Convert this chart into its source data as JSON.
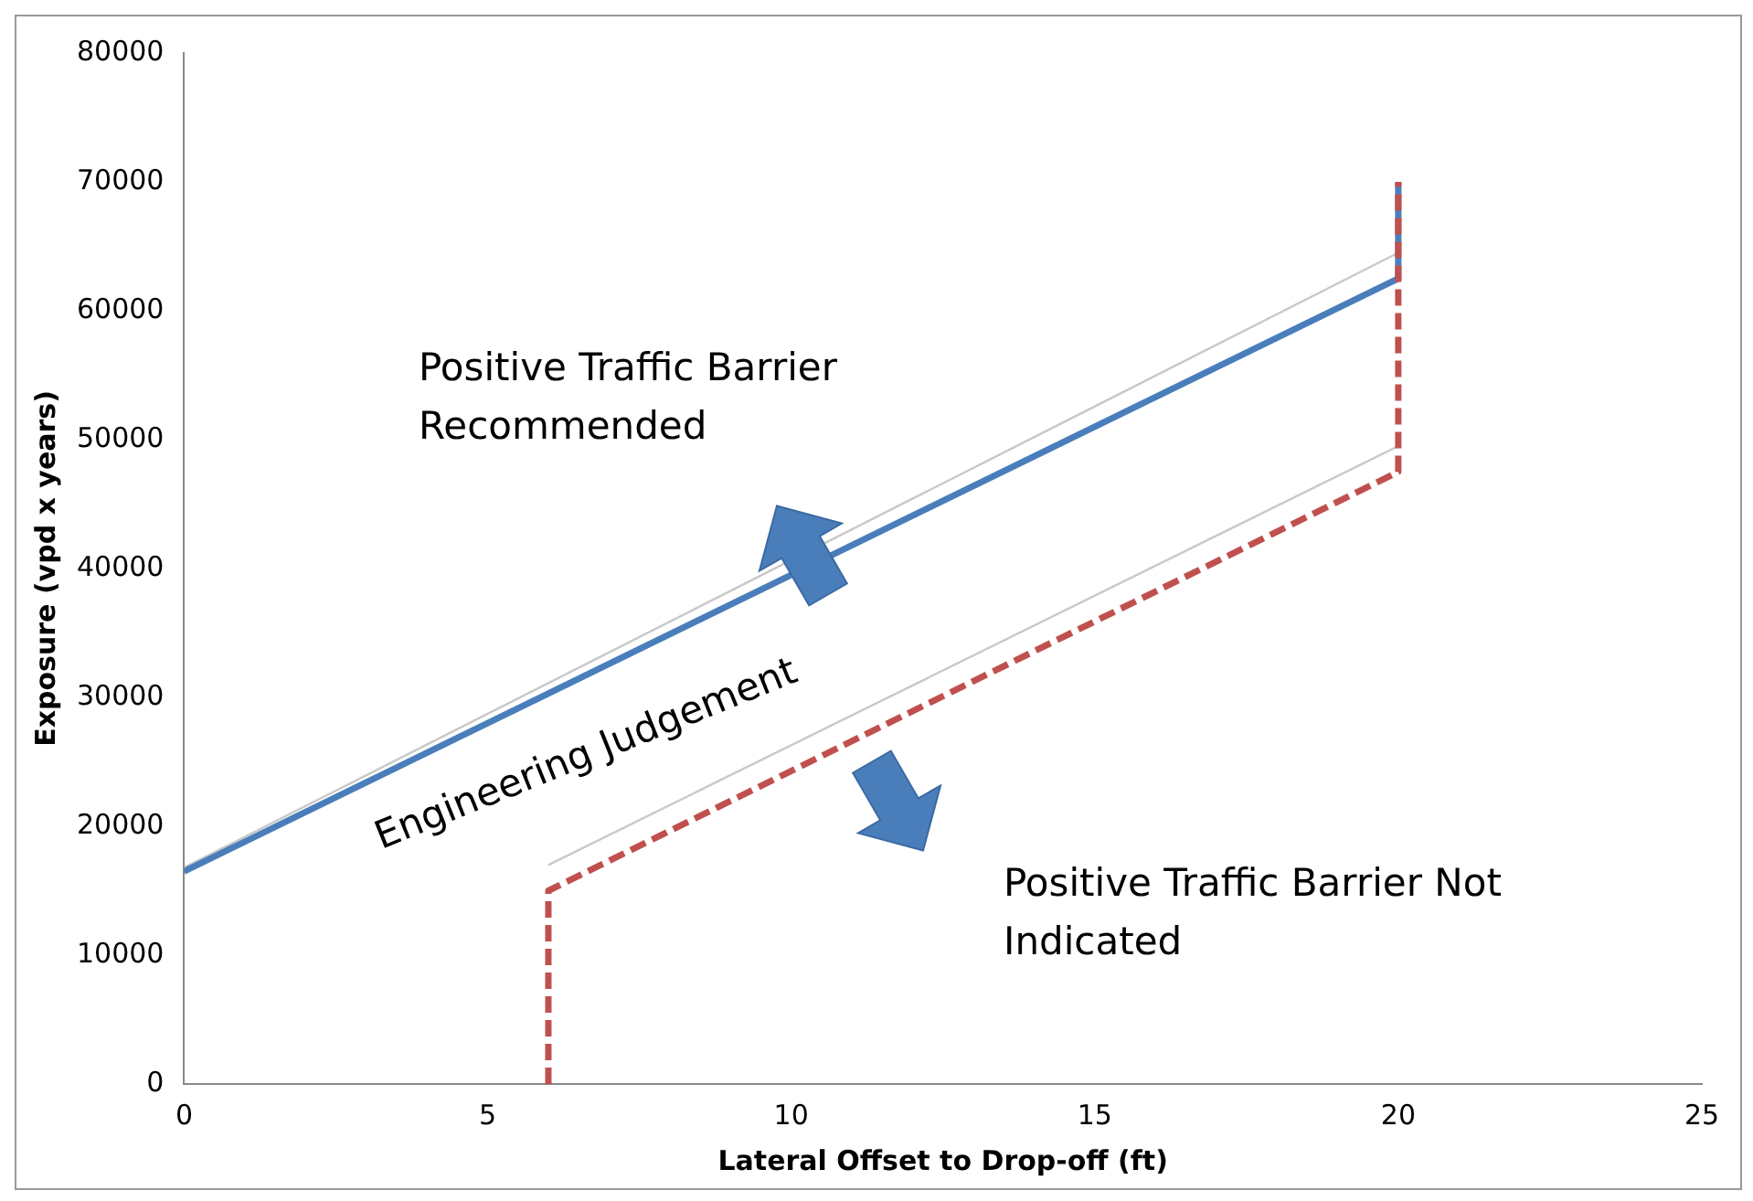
{
  "chart_data": {
    "type": "line",
    "xlabel": "Lateral Offset to Drop-off (ft)",
    "ylabel": "Exposure (vpd x years)",
    "xlim": [
      0,
      25
    ],
    "xticks": [
      0,
      5,
      10,
      15,
      20,
      25
    ],
    "ylim": [
      0,
      80000
    ],
    "yticks": [
      0,
      10000,
      20000,
      30000,
      40000,
      50000,
      60000,
      70000,
      80000
    ],
    "grid": false,
    "legend": false,
    "marker": "none",
    "series": [
      {
        "color": "#c8c8c8",
        "x": [
          0,
          20
        ],
        "values": [
          16800,
          64500
        ],
        "line_style": "solid"
      },
      {
        "color": "#c8c8c8",
        "x": [
          6,
          20
        ],
        "values": [
          17000,
          49500
        ],
        "line_style": "solid"
      },
      {
        "color": "#4a7ebb",
        "x": [
          0,
          20,
          20
        ],
        "values": [
          16500,
          62500,
          70000
        ],
        "line_style": "solid"
      },
      {
        "color": "#c0504d",
        "x": [
          6,
          6,
          20,
          20
        ],
        "values": [
          0,
          15000,
          47500,
          70000
        ],
        "line_style": "dashed"
      }
    ],
    "annotations": [
      "Positive Traffic Barrier Recommended",
      "Engineering Judgement",
      "Positive Traffic Barrier Not Indicated"
    ]
  }
}
